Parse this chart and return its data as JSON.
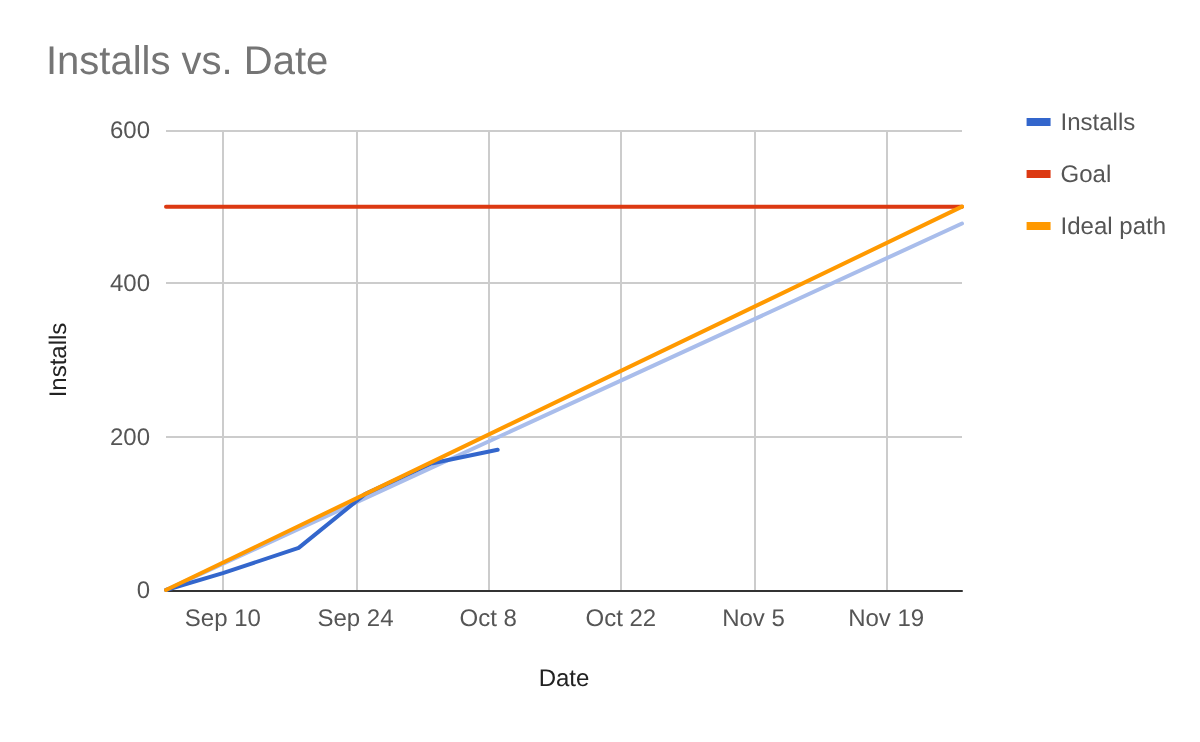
{
  "chart_data": {
    "type": "line",
    "title": "Installs vs. Date",
    "xlabel": "Date",
    "ylabel": "Installs",
    "xlim": [
      "--09-04",
      "--11-27"
    ],
    "xticks": [
      {
        "value": "--09-10",
        "label": "Sep 10"
      },
      {
        "value": "--09-24",
        "label": "Sep 24"
      },
      {
        "value": "--10-08",
        "label": "Oct 8"
      },
      {
        "value": "--10-22",
        "label": "Oct 22"
      },
      {
        "value": "--11-05",
        "label": "Nov 5"
      },
      {
        "value": "--11-19",
        "label": "Nov 19"
      }
    ],
    "ylim": [
      0,
      600
    ],
    "yticks": [
      0,
      200,
      400,
      600
    ],
    "grid": true,
    "legend": "right",
    "marker": "none",
    "line_style": "solid",
    "series": [
      {
        "name": "Installs",
        "color": "#3366cc",
        "x": [
          "--09-04",
          "--09-10",
          "--09-18",
          "--09-25",
          "--10-02",
          "--10-09"
        ],
        "values": [
          0,
          22,
          55,
          125,
          165,
          183
        ]
      },
      {
        "name": "Goal",
        "color": "#dc3912",
        "x": [
          "--09-04",
          "--11-27"
        ],
        "values": [
          500,
          500
        ]
      },
      {
        "name": "Ideal path",
        "color": "#ff9900",
        "x": [
          "--09-04",
          "--11-27"
        ],
        "values": [
          0,
          500
        ]
      },
      {
        "color": "#a9bdeb",
        "x": [
          "--09-04",
          "--11-27"
        ],
        "values": [
          0,
          478
        ]
      }
    ]
  }
}
